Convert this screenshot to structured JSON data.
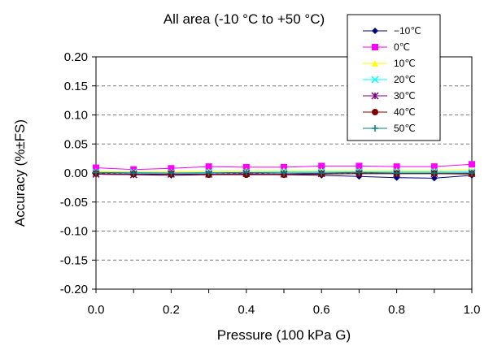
{
  "chart_data": {
    "type": "line",
    "title": "All area (-10 °C to +50 °C)",
    "xlabel": "Pressure (100 kPa G)",
    "ylabel": "Accuracy (%±FS)",
    "xlim": [
      0.0,
      1.0
    ],
    "ylim": [
      -0.2,
      0.2
    ],
    "x_ticks": [
      "0.0",
      "0.2",
      "0.4",
      "0.6",
      "0.8",
      "1.0"
    ],
    "y_ticks": [
      "0.20",
      "0.15",
      "0.10",
      "0.05",
      "0.00",
      "-0.05",
      "-0.10",
      "-0.15",
      "-0.20"
    ],
    "grid": "horizontal dashed",
    "legend_position": "top-right",
    "x": [
      0.0,
      0.1,
      0.2,
      0.3,
      0.4,
      0.5,
      0.6,
      0.7,
      0.8,
      0.9,
      1.0
    ],
    "series": [
      {
        "name": "−10℃",
        "color": "#000080",
        "marker": "diamond",
        "values": [
          -0.002,
          -0.003,
          -0.004,
          -0.003,
          -0.002,
          -0.003,
          -0.004,
          -0.006,
          -0.008,
          -0.009,
          -0.004
        ]
      },
      {
        "name": "0℃",
        "color": "#ff00ff",
        "marker": "square",
        "values": [
          0.009,
          0.006,
          0.008,
          0.011,
          0.01,
          0.01,
          0.012,
          0.012,
          0.011,
          0.011,
          0.015
        ]
      },
      {
        "name": "10℃",
        "color": "#ffff00",
        "marker": "triangle",
        "values": [
          0.003,
          0.002,
          0.002,
          0.003,
          0.004,
          0.004,
          0.004,
          0.004,
          0.004,
          0.004,
          0.005
        ]
      },
      {
        "name": "20℃",
        "color": "#00ffff",
        "marker": "x",
        "values": [
          0.001,
          0.001,
          0.0,
          0.001,
          0.001,
          0.002,
          0.002,
          0.002,
          0.002,
          0.002,
          0.002
        ]
      },
      {
        "name": "30℃",
        "color": "#800080",
        "marker": "star",
        "values": [
          -0.002,
          -0.003,
          -0.002,
          -0.002,
          -0.001,
          -0.002,
          -0.001,
          -0.001,
          -0.001,
          -0.001,
          -0.001
        ]
      },
      {
        "name": "40℃",
        "color": "#800000",
        "marker": "circle",
        "values": [
          -0.001,
          -0.002,
          -0.002,
          -0.003,
          -0.003,
          -0.003,
          -0.002,
          -0.001,
          -0.001,
          -0.001,
          -0.002
        ]
      },
      {
        "name": "50℃",
        "color": "#008080",
        "marker": "plus",
        "values": [
          0.001,
          0.0,
          0.0,
          0.0,
          0.001,
          0.0,
          0.0,
          0.001,
          0.0,
          0.0,
          0.0
        ]
      }
    ]
  }
}
